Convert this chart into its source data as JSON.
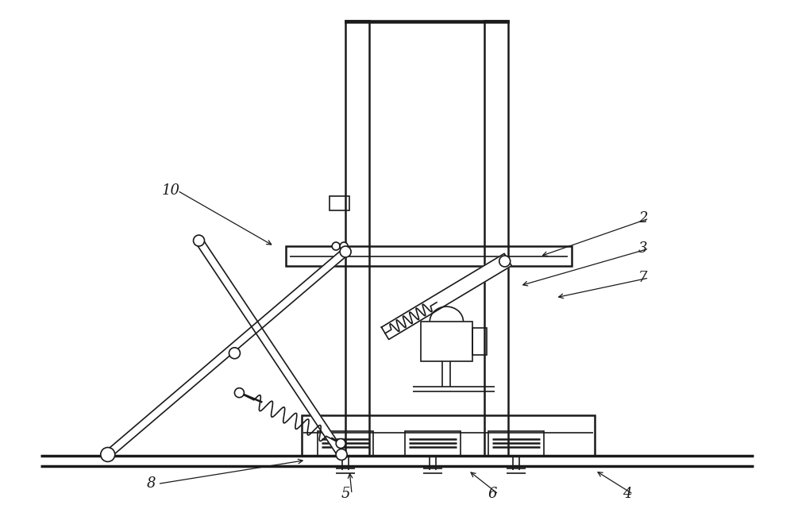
{
  "bg_color": "#ffffff",
  "line_color": "#1a1a1a",
  "lw": 1.2,
  "lw2": 1.8,
  "lw3": 2.5,
  "fig_w": 10.0,
  "fig_h": 6.65
}
